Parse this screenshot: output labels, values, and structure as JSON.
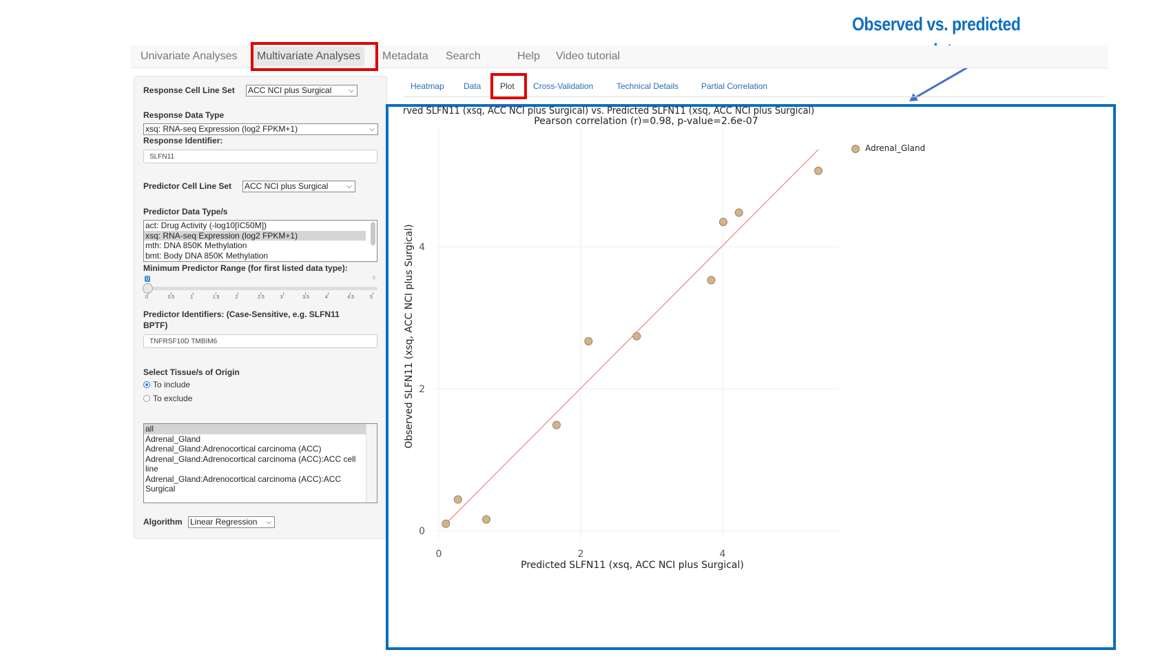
{
  "annotation": {
    "line1": "Observed  vs. predicted",
    "line2": "response plot"
  },
  "navbar": {
    "items": [
      "Univariate Analyses",
      "Multivariate Analyses",
      "Metadata",
      "Search",
      "Help",
      "Video tutorial"
    ],
    "active": "Multivariate Analyses"
  },
  "sidebar": {
    "response_cell_line_set_label": "Response Cell Line Set",
    "response_cell_line_set_value": "ACC NCI plus Surgical",
    "response_data_type_label": "Response Data Type",
    "response_data_type_value": "xsq: RNA-seq Expression (log2 FPKM+1)",
    "response_identifier_label": "Response Identifier:",
    "response_identifier_value": "SLFN11",
    "predictor_cell_line_set_label": "Predictor Cell Line Set",
    "predictor_cell_line_set_value": "ACC NCI plus Surgical",
    "predictor_data_types_label": "Predictor Data Type/s",
    "predictor_data_types": [
      {
        "label": "act: Drug Activity (-log10[IC50M])",
        "selected": false
      },
      {
        "label": "xsq: RNA-seq Expression (log2 FPKM+1)",
        "selected": true
      },
      {
        "label": "mth: DNA 850K Methylation",
        "selected": false
      },
      {
        "label": "bmt: Body DNA 850K Methylation",
        "selected": false
      }
    ],
    "min_range_label": "Minimum Predictor Range (for first listed data type):",
    "min_range_value": "0",
    "min_range_max": "5",
    "min_range_ticks": [
      "0",
      "0.5",
      "1",
      "1.5",
      "2",
      "2.5",
      "3",
      "3.5",
      "4",
      "4.5",
      "5"
    ],
    "predictor_identifiers_label_1": "Predictor Identifiers: (Case-Sensitive, e.g. SLFN11",
    "predictor_identifiers_label_2": "BPTF)",
    "predictor_identifiers_value": "TNFRSF10D TMBIM6",
    "tissue_label": "Select Tissue/s of Origin",
    "radio_include": "To include",
    "radio_exclude": "To exclude",
    "radio_selected": "To include",
    "tissues": [
      {
        "label": "all",
        "selected": true
      },
      {
        "label": "Adrenal_Gland",
        "selected": false
      },
      {
        "label": "Adrenal_Gland:Adrenocortical carcinoma (ACC)",
        "selected": false
      },
      {
        "label": "Adrenal_Gland:Adrenocortical carcinoma (ACC):ACC cell line",
        "selected": false
      },
      {
        "label": "Adrenal_Gland:Adrenocortical carcinoma (ACC):ACC Surgical",
        "selected": false
      }
    ],
    "algorithm_label": "Algorithm",
    "algorithm_value": "Linear Regression"
  },
  "subtabs": {
    "items": [
      "Heatmap",
      "Data",
      "Plot",
      "Cross-Validation",
      "Technical Details",
      "Partial Correlation"
    ],
    "active": "Plot"
  },
  "colors": {
    "highlight": "#e00000",
    "annotation": "#0b6fc0",
    "point": "#d2b48c",
    "fit_line": "#f08080",
    "link": "#2a6ab8"
  },
  "chart_data": {
    "type": "scatter",
    "title": "rved SLFN11 (xsq, ACC NCI plus Surgical) vs. Predicted SLFN11 (xsq, ACC NCI plus Surgical)",
    "subtitle": "Pearson correlation (r)=0.98, p-value=2.6e-07",
    "xlabel": "Predicted SLFN11 (xsq, ACC NCI plus Surgical)",
    "ylabel": "Observed SLFN11 (xsq, ACC NCI plus Surgical)",
    "xticks": [
      0,
      2,
      4
    ],
    "yticks": [
      0,
      2,
      4
    ],
    "xlim": [
      -0.25,
      5.6
    ],
    "ylim": [
      -0.1,
      5.55
    ],
    "grid": true,
    "legend_position": "top-right",
    "series": [
      {
        "name": "Adrenal_Gland",
        "points": [
          {
            "x": 0.1,
            "y": 0.1
          },
          {
            "x": 0.27,
            "y": 0.44
          },
          {
            "x": 0.67,
            "y": 0.16
          },
          {
            "x": 1.66,
            "y": 1.49
          },
          {
            "x": 2.11,
            "y": 2.67
          },
          {
            "x": 2.79,
            "y": 2.74
          },
          {
            "x": 3.84,
            "y": 3.53
          },
          {
            "x": 4.01,
            "y": 4.35
          },
          {
            "x": 4.23,
            "y": 4.48
          },
          {
            "x": 5.35,
            "y": 5.07
          }
        ]
      }
    ],
    "fit_line": {
      "x": [
        0.1,
        5.35
      ],
      "y": [
        0.1,
        5.37
      ]
    }
  }
}
